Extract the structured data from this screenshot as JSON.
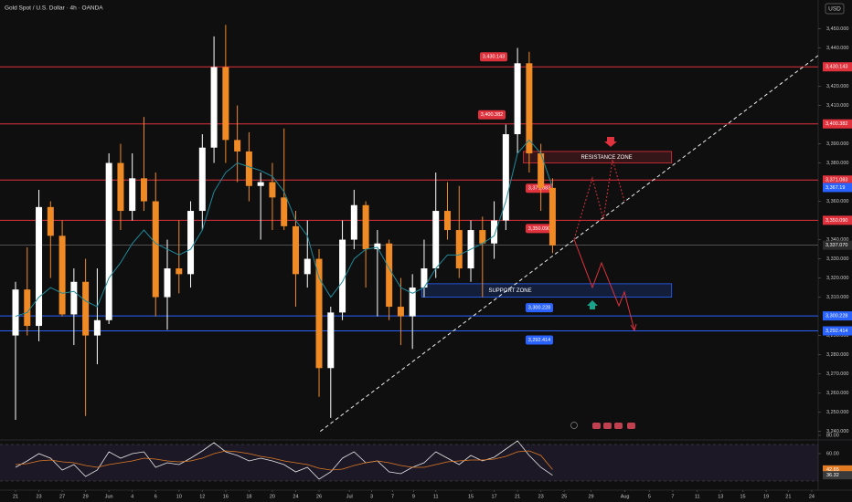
{
  "chart_data": {
    "type": "candlestick",
    "title": "Gold Spot / U.S. Dollar · 4h · OANDA",
    "currency": "USD",
    "up_color": "#ffffff",
    "down_color": "#f08a24",
    "ylim": [
      3236,
      3465
    ],
    "yticks": [
      {
        "value": 3240,
        "label": "3,240.000"
      },
      {
        "value": 3250,
        "label": "3,250.000"
      },
      {
        "value": 3260,
        "label": "3,260.000"
      },
      {
        "value": 3270,
        "label": "3,270.000"
      },
      {
        "value": 3280,
        "label": "3,280.000"
      },
      {
        "value": 3290,
        "label": "3,290.000"
      },
      {
        "value": 3310,
        "label": "3,310.000"
      },
      {
        "value": 3320,
        "label": "3,320.000"
      },
      {
        "value": 3330,
        "label": "3,330.000"
      },
      {
        "value": 3340,
        "label": "3,340.000"
      },
      {
        "value": 3360,
        "label": "3,360.000"
      },
      {
        "value": 3380,
        "label": "3,380.000"
      },
      {
        "value": 3390,
        "label": "3,390.000"
      },
      {
        "value": 3410,
        "label": "3,410.000"
      },
      {
        "value": 3420,
        "label": "3,420.000"
      },
      {
        "value": 3440,
        "label": "3,440.000"
      },
      {
        "value": 3450,
        "label": "3,450.000"
      }
    ],
    "xlim": [
      -1.33,
      68.75
    ],
    "xticks": [
      {
        "value": 0,
        "label": "21"
      },
      {
        "value": 2,
        "label": "23"
      },
      {
        "value": 4,
        "label": "27"
      },
      {
        "value": 6,
        "label": "29"
      },
      {
        "value": 8,
        "label": "Jun"
      },
      {
        "value": 10,
        "label": "4"
      },
      {
        "value": 12,
        "label": "6"
      },
      {
        "value": 14,
        "label": "10"
      },
      {
        "value": 16,
        "label": "12"
      },
      {
        "value": 18,
        "label": "16"
      },
      {
        "value": 20,
        "label": "18"
      },
      {
        "value": 22,
        "label": "20"
      },
      {
        "value": 24,
        "label": "24"
      },
      {
        "value": 26,
        "label": "26"
      },
      {
        "value": 28.6,
        "label": "Jul"
      },
      {
        "value": 30.5,
        "label": "3"
      },
      {
        "value": 32.3,
        "label": "7"
      },
      {
        "value": 34.1,
        "label": "9"
      },
      {
        "value": 36,
        "label": "11"
      },
      {
        "value": 39,
        "label": "15"
      },
      {
        "value": 41,
        "label": "17"
      },
      {
        "value": 43,
        "label": "21"
      },
      {
        "value": 45,
        "label": "23"
      },
      {
        "value": 47,
        "label": "25"
      },
      {
        "value": 49.3,
        "label": "29"
      },
      {
        "value": 52.2,
        "label": "Aug"
      },
      {
        "value": 54.3,
        "label": "5"
      },
      {
        "value": 56.3,
        "label": "7"
      },
      {
        "value": 58.4,
        "label": "11"
      },
      {
        "value": 60.4,
        "label": "13"
      },
      {
        "value": 62.3,
        "label": "15"
      },
      {
        "value": 64.3,
        "label": "19"
      },
      {
        "value": 66.2,
        "label": "21"
      },
      {
        "value": 68.2,
        "label": "24"
      }
    ],
    "x": [
      0,
      1,
      2,
      3,
      4,
      5,
      6,
      7,
      8,
      9,
      10,
      11,
      12,
      13,
      14,
      15,
      16,
      17,
      18,
      19,
      20,
      21,
      22,
      23,
      24,
      25,
      26,
      27,
      28,
      29,
      30,
      31,
      32,
      33,
      34,
      35,
      36,
      37,
      38,
      39,
      40,
      41,
      42,
      43,
      44,
      45,
      46
    ],
    "open": [
      3290,
      3314,
      3295,
      3357,
      3342,
      3301,
      3318,
      3290,
      3298,
      3380,
      3355,
      3372,
      3360,
      3310,
      3325,
      3322,
      3355,
      3388,
      3430,
      3392,
      3386,
      3368,
      3370,
      3362,
      3347,
      3322,
      3330,
      3273,
      3302,
      3340,
      3358,
      3335,
      3338,
      3305,
      3300,
      3315,
      3325,
      3355,
      3345,
      3325,
      3345,
      3338,
      3350,
      3395,
      3432,
      3385,
      3367
    ],
    "high": [
      3318,
      3336,
      3366,
      3360,
      3350,
      3325,
      3330,
      3325,
      3385,
      3390,
      3385,
      3404,
      3375,
      3340,
      3350,
      3360,
      3395,
      3446,
      3452,
      3410,
      3396,
      3375,
      3380,
      3398,
      3355,
      3350,
      3335,
      3305,
      3350,
      3366,
      3360,
      3345,
      3340,
      3320,
      3322,
      3340,
      3375,
      3370,
      3368,
      3350,
      3352,
      3360,
      3400,
      3440,
      3438,
      3390,
      3372
    ],
    "low": [
      3246,
      3290,
      3287,
      3320,
      3300,
      3285,
      3248,
      3275,
      3296,
      3345,
      3350,
      3355,
      3300,
      3293,
      3312,
      3315,
      3345,
      3380,
      3380,
      3370,
      3360,
      3340,
      3345,
      3345,
      3305,
      3315,
      3258,
      3247,
      3298,
      3335,
      3315,
      3300,
      3298,
      3285,
      3283,
      3310,
      3320,
      3340,
      3320,
      3318,
      3310,
      3330,
      3345,
      3385,
      3375,
      3355,
      3333
    ],
    "close": [
      3314,
      3295,
      3357,
      3342,
      3301,
      3318,
      3290,
      3298,
      3380,
      3355,
      3372,
      3360,
      3310,
      3325,
      3322,
      3355,
      3388,
      3430,
      3392,
      3386,
      3368,
      3370,
      3362,
      3347,
      3322,
      3330,
      3273,
      3302,
      3340,
      3358,
      3335,
      3338,
      3305,
      3300,
      3315,
      3325,
      3355,
      3345,
      3325,
      3345,
      3338,
      3350,
      3395,
      3432,
      3385,
      3367,
      3337
    ],
    "ema": {
      "color": "#1f8a9a",
      "values": [
        3300,
        3302,
        3310,
        3315,
        3312,
        3313,
        3308,
        3305,
        3320,
        3328,
        3338,
        3345,
        3338,
        3335,
        3332,
        3335,
        3345,
        3365,
        3375,
        3380,
        3378,
        3376,
        3373,
        3365,
        3350,
        3342,
        3320,
        3310,
        3318,
        3330,
        3335,
        3336,
        3325,
        3315,
        3312,
        3315,
        3325,
        3332,
        3332,
        3335,
        3338,
        3342,
        3360,
        3385,
        3392,
        3385,
        3367.19
      ]
    },
    "ema_tag": {
      "value": 3367.19,
      "label": "3,367.19"
    },
    "current_price": {
      "value": 3337.07,
      "label": "3,337.070"
    },
    "levels": [
      {
        "value": 3430.143,
        "label": "3,430.143",
        "color": "#e0323c"
      },
      {
        "value": 3400.382,
        "label": "3,400.382",
        "color": "#e0323c"
      },
      {
        "value": 3371.083,
        "label": "3,371.083",
        "color": "#e0323c"
      },
      {
        "value": 3350.09,
        "label": "3,350.090",
        "color": "#e0323c"
      },
      {
        "value": 3300.228,
        "label": "3,300.228",
        "color": "#2962ff"
      },
      {
        "value": 3292.414,
        "label": "3,292.414",
        "color": "#2962ff"
      }
    ],
    "zones": [
      {
        "label": "RESISTANCE ZONE",
        "range": [
          3380,
          3386
        ],
        "x": [
          43.5,
          56.2
        ],
        "color": "#e0323c"
      },
      {
        "label": "SUPPORT ZONE",
        "range": [
          3310,
          3317
        ],
        "x": [
          34.8,
          56.2
        ],
        "color": "#2962ff"
      }
    ],
    "trendline": {
      "x": [
        26.1,
        68.75
      ],
      "y": [
        3240,
        3436
      ]
    },
    "rsi": {
      "ylim": [
        22,
        80
      ],
      "yticks": [
        {
          "value": 80,
          "label": "80.00"
        },
        {
          "value": 60,
          "label": "60.00"
        }
      ],
      "bands": [
        30,
        70
      ],
      "values": [
        45,
        52,
        60,
        55,
        42,
        48,
        35,
        42,
        62,
        55,
        60,
        62,
        45,
        50,
        48,
        55,
        63,
        72,
        62,
        58,
        52,
        55,
        52,
        48,
        40,
        45,
        32,
        40,
        55,
        62,
        50,
        52,
        40,
        38,
        45,
        50,
        62,
        55,
        48,
        58,
        52,
        56,
        65,
        74,
        58,
        45,
        36.32
      ],
      "ma": [
        48,
        49,
        52,
        53,
        51,
        50,
        47,
        45,
        48,
        50,
        52,
        55,
        54,
        52,
        51,
        52,
        55,
        60,
        63,
        62,
        60,
        57,
        55,
        52,
        50,
        48,
        44,
        42,
        43,
        47,
        50,
        52,
        50,
        47,
        45,
        45,
        48,
        51,
        52,
        53,
        53,
        54,
        57,
        62,
        63,
        58,
        42.65
      ],
      "color": "#e8e8e8",
      "ma_color": "#e07b24",
      "tags": [
        {
          "value": 42.65,
          "label": "42.65",
          "color": "#e07b24"
        },
        {
          "value": 36.32,
          "label": "36.32",
          "color": "#3a3a3a"
        }
      ]
    }
  }
}
